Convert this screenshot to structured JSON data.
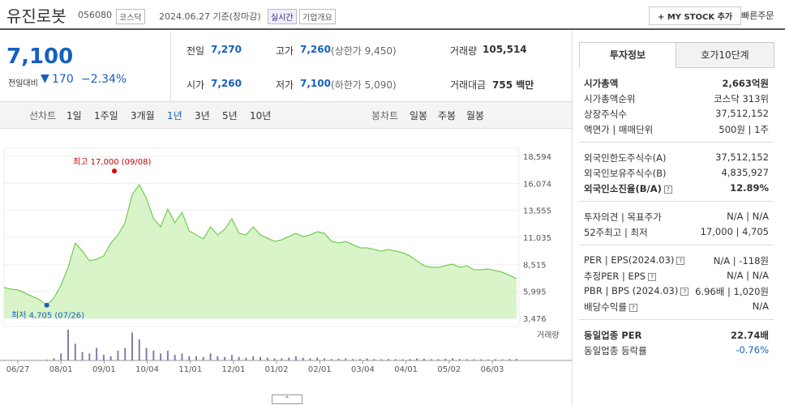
{
  "header": {
    "name": "유진로봇",
    "code": "056080",
    "market": "코스닥",
    "date": "2024.06.27 기준(장마감)",
    "realtime": "실시간",
    "company_info": "기업개요",
    "my_stock": "+ MY STOCK 추가",
    "quick_order": "빠른주문"
  },
  "price": {
    "current": "7,100",
    "change_label": "전일대비",
    "change": "170",
    "rate": "−2.34%"
  },
  "summary": [
    [
      {
        "label": "전일",
        "value": "7,270"
      },
      {
        "label": "고가",
        "value": "7,260",
        "extra": "(상한가 9,450)"
      },
      {
        "label": "거래량",
        "value": "105,514"
      }
    ],
    [
      {
        "label": "시가",
        "value": "7,260"
      },
      {
        "label": "저가",
        "value": "7,100",
        "extra": "(하한가 5,090)"
      },
      {
        "label": "거래대금",
        "value": "755 백만"
      }
    ]
  ],
  "tabs": {
    "line_label": "선차트",
    "line_periods": [
      "1일",
      "1주일",
      "3개월",
      "1년",
      "3년",
      "5년",
      "10년"
    ],
    "selected": "1년",
    "candle_label": "봉차트",
    "candle_periods": [
      "일봉",
      "주봉",
      "월봉"
    ]
  },
  "chart": {
    "ylim": [
      3476,
      18594
    ],
    "yticks": [
      {
        "value": 18594,
        "label": "18,594"
      },
      {
        "value": 16074,
        "label": "16,074"
      },
      {
        "value": 13555,
        "label": "13,555"
      },
      {
        "value": 11035,
        "label": "11,035"
      },
      {
        "value": 8515,
        "label": "8,515"
      },
      {
        "value": 5995,
        "label": "5,995"
      },
      {
        "value": 3476,
        "label": "3,476"
      }
    ],
    "xlabels": [
      "06/27",
      "08/01",
      "09/01",
      "10/04",
      "11/01",
      "12/01",
      "01/02",
      "02/01",
      "03/04",
      "04/01",
      "05/02",
      "06/03"
    ],
    "high": {
      "value": 17000,
      "label": "최고 17,000 (09/08)"
    },
    "low": {
      "value": 4705,
      "label": "최저 4,705 (07/26)"
    },
    "prices": [
      6348,
      6197,
      6122,
      5819,
      5517,
      5215,
      4705,
      5366,
      6575,
      8238,
      10506,
      9750,
      8843,
      8994,
      9297,
      10506,
      11262,
      12396,
      15041,
      15948,
      14663,
      12774,
      12018,
      13681,
      12396,
      13379,
      11640,
      11262,
      10884,
      12018,
      11262,
      11791,
      12774,
      11413,
      11262,
      12018,
      11262,
      10959,
      10657,
      10808,
      11111,
      11413,
      11111,
      11262,
      11564,
      11413,
      10657,
      10506,
      10657,
      10355,
      10053,
      10053,
      9902,
      9750,
      9902,
      9750,
      9599,
      9297,
      8843,
      8389,
      8238,
      8238,
      8389,
      8540,
      8238,
      8389,
      8011,
      8011,
      8087,
      7936,
      7785,
      7482,
      7180
    ],
    "volume": [
      40000,
      35000,
      30000,
      30000,
      25000,
      30000,
      60000,
      150000,
      500000,
      2200000,
      1200000,
      600000,
      500000,
      900000,
      400000,
      300000,
      700000,
      900000,
      2000000,
      1500000,
      900000,
      700000,
      500000,
      700000,
      400000,
      500000,
      300000,
      300000,
      250000,
      500000,
      300000,
      250000,
      400000,
      250000,
      200000,
      300000,
      250000,
      200000,
      150000,
      150000,
      200000,
      300000,
      200000,
      150000,
      200000,
      150000,
      100000,
      120000,
      150000,
      100000,
      100000,
      150000,
      100000,
      80000,
      100000,
      90000,
      80000,
      100000,
      150000,
      120000,
      100000,
      90000,
      120000,
      150000,
      100000,
      90000,
      80000,
      80000,
      70000,
      90000,
      80000,
      100000,
      105514
    ],
    "volume_label": "거래량"
  },
  "info_tabs": [
    "투자정보",
    "호가10단계"
  ],
  "info": [
    [
      {
        "label": "시가총액",
        "value": "2,663억원",
        "bold": true
      },
      {
        "label": "시가총액순위",
        "value": "코스닥 313위"
      },
      {
        "label": "상장주식수",
        "value": "37,512,152"
      },
      {
        "label": "액면가 | 매매단위",
        "value": "500원 | 1주"
      }
    ],
    [
      {
        "label": "외국인한도주식수(A)",
        "value": "37,512,152"
      },
      {
        "label": "외국인보유주식수(B)",
        "value": "4,835,927"
      },
      {
        "label": "외국인소진율(B/A)",
        "value": "12.89%",
        "bold": true,
        "help": true
      }
    ],
    [
      {
        "label": "투자의견 | 목표주가",
        "value": "N/A | N/A"
      },
      {
        "label": "52주최고 | 최저",
        "value": "17,000 | 4,705"
      }
    ],
    [
      {
        "label": "PER | EPS(2024.03)",
        "value": "N/A | -118원",
        "help": true
      },
      {
        "label": "추정PER | EPS",
        "value": "N/A | N/A",
        "help": true
      },
      {
        "label": "PBR | BPS (2024.03)",
        "value": "6.96배 | 1,020원",
        "help": true
      },
      {
        "label": "배당수익률",
        "value": "N/A",
        "help": true
      }
    ],
    [
      {
        "label": "동일업종 PER",
        "value": "22.74배",
        "bold": true
      },
      {
        "label": "동일업종 등락률",
        "value": "-0.76%",
        "blue": true
      }
    ]
  ]
}
